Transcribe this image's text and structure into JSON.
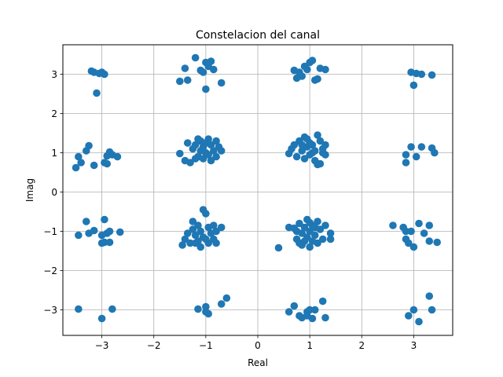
{
  "chart_data": {
    "type": "scatter",
    "title": "Constelacion del canal",
    "xlabel": "Real",
    "ylabel": "Imag",
    "xlim": [
      -3.75,
      3.75
    ],
    "ylim": [
      -3.65,
      3.75
    ],
    "xticks": [
      -3,
      -2,
      -1,
      0,
      1,
      2,
      3
    ],
    "yticks": [
      -3,
      -2,
      -1,
      0,
      1,
      2,
      3
    ],
    "xtick_labels": [
      "−3",
      "−2",
      "−1",
      "0",
      "1",
      "2",
      "3"
    ],
    "ytick_labels": [
      "−3",
      "−2",
      "−1",
      "0",
      "1",
      "2",
      "3"
    ],
    "grid": true,
    "marker_color": "#1f77b4",
    "series": [
      {
        "points": [
          [
            -3.2,
            3.08
          ],
          [
            -3.15,
            3.05
          ],
          [
            -3.0,
            3.05
          ],
          [
            -2.95,
            3.0
          ],
          [
            -3.05,
            3.02
          ],
          [
            -3.1,
            2.52
          ],
          [
            -1.4,
            3.15
          ],
          [
            -1.35,
            2.85
          ],
          [
            -1.5,
            2.82
          ],
          [
            -1.2,
            3.42
          ],
          [
            -1.1,
            3.1
          ],
          [
            -1.05,
            3.05
          ],
          [
            -1.0,
            3.3
          ],
          [
            -0.9,
            3.33
          ],
          [
            -0.95,
            3.2
          ],
          [
            -0.85,
            3.12
          ],
          [
            -0.7,
            2.78
          ],
          [
            -1.0,
            2.62
          ],
          [
            0.7,
            3.1
          ],
          [
            0.75,
            2.9
          ],
          [
            0.8,
            3.05
          ],
          [
            0.85,
            2.95
          ],
          [
            0.9,
            3.2
          ],
          [
            0.95,
            3.12
          ],
          [
            1.0,
            3.3
          ],
          [
            1.05,
            3.35
          ],
          [
            1.1,
            2.85
          ],
          [
            1.15,
            2.88
          ],
          [
            1.2,
            3.15
          ],
          [
            1.3,
            3.12
          ],
          [
            2.95,
            3.05
          ],
          [
            3.05,
            3.02
          ],
          [
            3.15,
            3.0
          ],
          [
            3.35,
            2.98
          ],
          [
            3.0,
            2.72
          ],
          [
            -3.45,
            0.9
          ],
          [
            -3.4,
            0.75
          ],
          [
            -3.5,
            0.62
          ],
          [
            -3.3,
            1.05
          ],
          [
            -3.25,
            1.18
          ],
          [
            -3.15,
            0.68
          ],
          [
            -2.95,
            0.75
          ],
          [
            -2.9,
            0.72
          ],
          [
            -2.85,
            1.02
          ],
          [
            -2.8,
            0.95
          ],
          [
            -2.7,
            0.9
          ],
          [
            -2.9,
            0.92
          ],
          [
            -1.5,
            0.98
          ],
          [
            -1.4,
            0.8
          ],
          [
            -1.35,
            1.25
          ],
          [
            -1.3,
            0.75
          ],
          [
            -1.25,
            1.1
          ],
          [
            -1.2,
            1.2
          ],
          [
            -1.15,
            0.9
          ],
          [
            -1.1,
            1.3
          ],
          [
            -1.1,
            1.05
          ],
          [
            -1.05,
            1.15
          ],
          [
            -1.05,
            0.85
          ],
          [
            -1.0,
            1.25
          ],
          [
            -1.0,
            1.0
          ],
          [
            -0.95,
            1.35
          ],
          [
            -0.95,
            0.95
          ],
          [
            -0.9,
            1.2
          ],
          [
            -0.85,
            1.05
          ],
          [
            -0.8,
            0.9
          ],
          [
            -0.8,
            1.3
          ],
          [
            -0.75,
            1.15
          ],
          [
            -0.7,
            1.05
          ],
          [
            -0.9,
            0.8
          ],
          [
            -1.15,
            1.35
          ],
          [
            -1.2,
            0.85
          ],
          [
            0.6,
            0.98
          ],
          [
            0.65,
            1.1
          ],
          [
            0.7,
            1.2
          ],
          [
            0.75,
            0.9
          ],
          [
            0.8,
            1.3
          ],
          [
            0.85,
            1.05
          ],
          [
            0.9,
            1.4
          ],
          [
            0.9,
            0.85
          ],
          [
            0.95,
            1.15
          ],
          [
            1.0,
            1.25
          ],
          [
            1.0,
            0.95
          ],
          [
            1.05,
            1.0
          ],
          [
            1.05,
            1.2
          ],
          [
            1.1,
            1.05
          ],
          [
            1.1,
            0.8
          ],
          [
            1.15,
            1.45
          ],
          [
            1.15,
            0.7
          ],
          [
            1.2,
            0.72
          ],
          [
            1.2,
            1.3
          ],
          [
            1.25,
            1.0
          ],
          [
            1.25,
            1.1
          ],
          [
            1.3,
            1.2
          ],
          [
            1.3,
            0.95
          ],
          [
            0.95,
            1.35
          ],
          [
            0.85,
            1.2
          ],
          [
            2.85,
            0.95
          ],
          [
            2.85,
            0.75
          ],
          [
            2.95,
            1.15
          ],
          [
            3.05,
            0.9
          ],
          [
            3.15,
            1.15
          ],
          [
            3.35,
            1.12
          ],
          [
            3.4,
            1.0
          ],
          [
            -3.3,
            -0.75
          ],
          [
            -3.25,
            -1.05
          ],
          [
            -3.15,
            -0.98
          ],
          [
            -3.45,
            -1.1
          ],
          [
            -3.0,
            -1.1
          ],
          [
            -2.95,
            -0.7
          ],
          [
            -2.95,
            -1.28
          ],
          [
            -2.9,
            -1.05
          ],
          [
            -2.85,
            -1.0
          ],
          [
            -2.85,
            -1.28
          ],
          [
            -2.65,
            -1.02
          ],
          [
            -3.0,
            -1.3
          ],
          [
            -1.45,
            -1.35
          ],
          [
            -1.4,
            -1.2
          ],
          [
            -1.35,
            -1.05
          ],
          [
            -1.3,
            -1.3
          ],
          [
            -1.25,
            -0.75
          ],
          [
            -1.25,
            -0.95
          ],
          [
            -1.2,
            -1.1
          ],
          [
            -1.15,
            -0.85
          ],
          [
            -1.15,
            -1.25
          ],
          [
            -1.1,
            -1.0
          ],
          [
            -1.05,
            -1.15
          ],
          [
            -1.05,
            -0.45
          ],
          [
            -1.0,
            -0.55
          ],
          [
            -1.0,
            -1.2
          ],
          [
            -0.95,
            -0.9
          ],
          [
            -0.95,
            -1.3
          ],
          [
            -0.9,
            -1.05
          ],
          [
            -0.85,
            -1.2
          ],
          [
            -0.85,
            -0.85
          ],
          [
            -0.8,
            -1.0
          ],
          [
            -0.7,
            -0.9
          ],
          [
            -0.8,
            -1.3
          ],
          [
            -1.2,
            -1.3
          ],
          [
            -1.1,
            -1.4
          ],
          [
            0.4,
            -1.42
          ],
          [
            0.6,
            -0.9
          ],
          [
            0.7,
            -0.92
          ],
          [
            0.75,
            -1.0
          ],
          [
            0.75,
            -1.2
          ],
          [
            0.8,
            -1.3
          ],
          [
            0.8,
            -0.8
          ],
          [
            0.85,
            -1.05
          ],
          [
            0.85,
            -1.35
          ],
          [
            0.9,
            -0.9
          ],
          [
            0.95,
            -1.15
          ],
          [
            0.95,
            -0.7
          ],
          [
            1.0,
            -1.0
          ],
          [
            1.0,
            -1.4
          ],
          [
            1.05,
            -1.25
          ],
          [
            1.05,
            -0.85
          ],
          [
            1.1,
            -1.1
          ],
          [
            1.15,
            -0.75
          ],
          [
            1.15,
            -1.3
          ],
          [
            1.2,
            -0.95
          ],
          [
            1.25,
            -1.2
          ],
          [
            1.3,
            -0.85
          ],
          [
            1.4,
            -1.05
          ],
          [
            1.4,
            -1.2
          ],
          [
            0.9,
            -1.25
          ],
          [
            1.1,
            -0.9
          ],
          [
            1.0,
            -0.78
          ],
          [
            2.6,
            -0.85
          ],
          [
            2.8,
            -0.9
          ],
          [
            2.85,
            -1.0
          ],
          [
            2.85,
            -1.2
          ],
          [
            2.9,
            -1.3
          ],
          [
            2.95,
            -1.0
          ],
          [
            3.0,
            -1.4
          ],
          [
            3.1,
            -0.8
          ],
          [
            3.2,
            -1.05
          ],
          [
            3.3,
            -0.85
          ],
          [
            3.3,
            -1.25
          ],
          [
            3.45,
            -1.28
          ],
          [
            -3.45,
            -2.98
          ],
          [
            -3.0,
            -3.22
          ],
          [
            -2.8,
            -2.98
          ],
          [
            -1.15,
            -2.98
          ],
          [
            -1.0,
            -2.92
          ],
          [
            -0.95,
            -3.1
          ],
          [
            -0.7,
            -2.85
          ],
          [
            -0.6,
            -2.7
          ],
          [
            -1.0,
            -3.05
          ],
          [
            0.6,
            -3.05
          ],
          [
            0.7,
            -2.9
          ],
          [
            0.8,
            -3.15
          ],
          [
            0.85,
            -3.2
          ],
          [
            0.95,
            -3.05
          ],
          [
            1.0,
            -3.0
          ],
          [
            1.05,
            -3.22
          ],
          [
            1.1,
            -3.0
          ],
          [
            1.25,
            -2.78
          ],
          [
            1.3,
            -3.2
          ],
          [
            0.95,
            -3.15
          ],
          [
            2.9,
            -3.15
          ],
          [
            3.0,
            -3.0
          ],
          [
            3.1,
            -3.3
          ],
          [
            3.3,
            -2.65
          ],
          [
            3.35,
            -3.0
          ]
        ]
      }
    ]
  }
}
